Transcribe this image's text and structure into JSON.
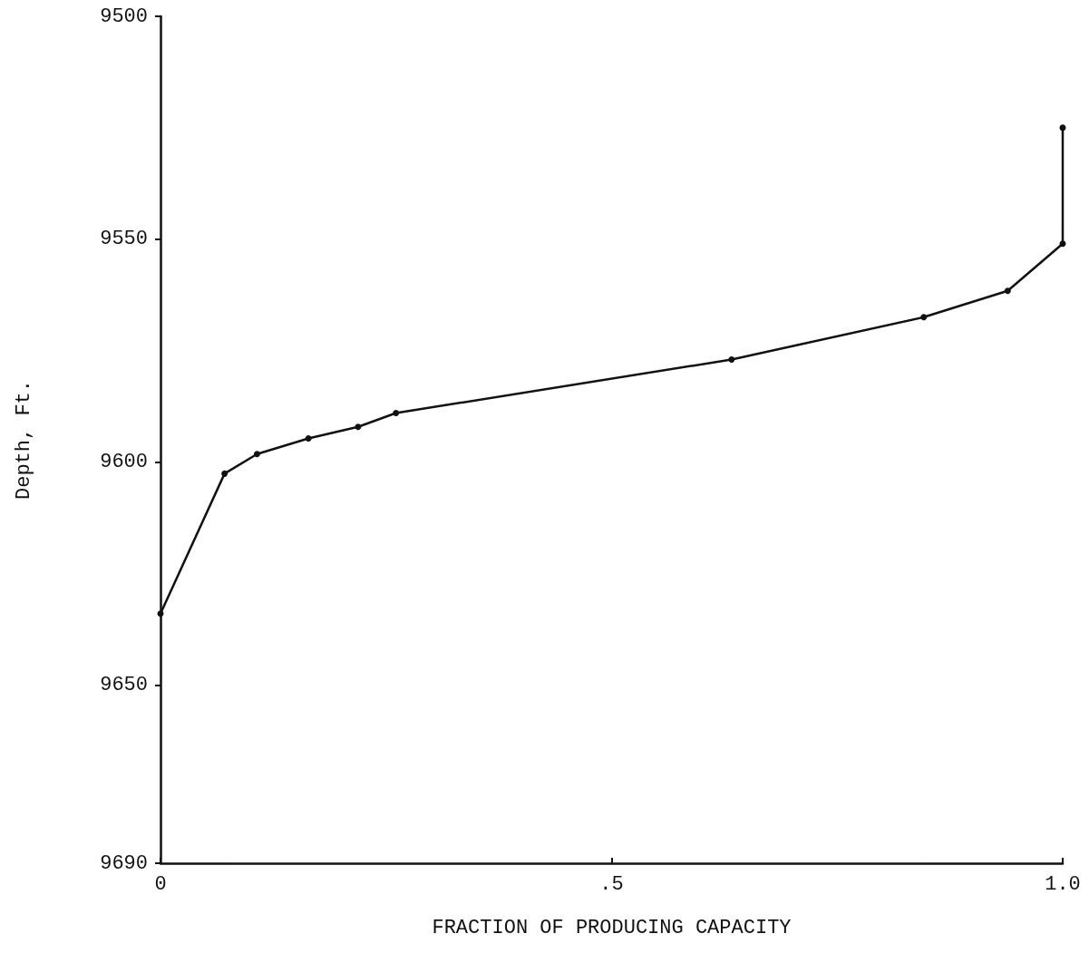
{
  "chart_data": {
    "type": "line",
    "xlabel": "FRACTION OF PRODUCING CAPACITY",
    "ylabel": "Depth, Ft.",
    "x": [
      0,
      0.071,
      0.107,
      0.164,
      0.219,
      0.261,
      0.633,
      0.846,
      0.939,
      1.0,
      1.0
    ],
    "series": [
      {
        "color": "#111111",
        "values": [
          9634,
          9602.6,
          9598.2,
          9594.7,
          9592.1,
          9589,
          9577,
          9567.5,
          9561.6,
          9551,
          9525
        ]
      }
    ],
    "xlim": [
      0,
      1.0
    ],
    "xticks": [
      0,
      {
        "value": 0.5,
        "label": ".5"
      },
      {
        "value": 1.0,
        "label": "1.0"
      }
    ],
    "ylim": [
      9690,
      9500
    ],
    "yticks": [
      9500,
      9550,
      9600,
      9650,
      9690
    ],
    "grid": false,
    "marker": "circle",
    "line_style": "solid"
  }
}
